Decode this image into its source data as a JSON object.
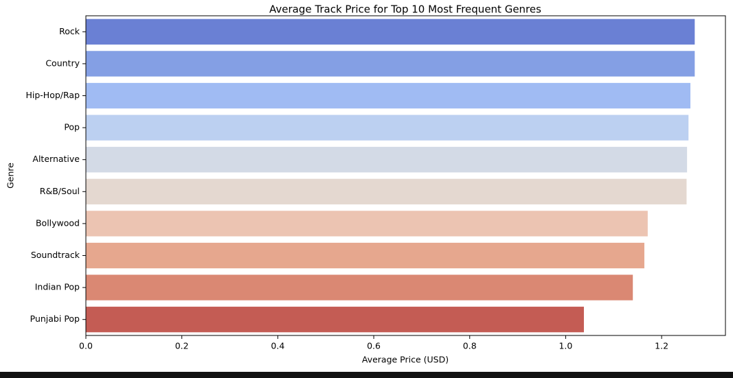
{
  "chart_data": {
    "type": "barh",
    "title": "Average Track Price for Top 10 Most Frequent Genres",
    "x_label": "Average Price (USD)",
    "y_label": "Genre",
    "categories": [
      "Rock",
      "Country",
      "Hip-Hop/Rap",
      "Pop",
      "Alternative",
      "R&B/Soul",
      "Bollywood",
      "Soundtrack",
      "Indian Pop",
      "Punjabi Pop"
    ],
    "values": [
      1.269,
      1.269,
      1.26,
      1.256,
      1.253,
      1.252,
      1.171,
      1.164,
      1.14,
      1.038
    ],
    "colors": [
      "#6a80d4",
      "#849fe4",
      "#a0bbf3",
      "#bcd0f1",
      "#d3dae6",
      "#e4d8d0",
      "#ecc4b2",
      "#e6a78e",
      "#da8873",
      "#c45c54"
    ],
    "xlim": [
      0,
      1.333
    ],
    "xticks": [
      {
        "value": 0,
        "label": "0.0"
      },
      0.2,
      0.4,
      0.6,
      0.8,
      {
        "value": 1,
        "label": "1.0"
      },
      1.2
    ]
  }
}
